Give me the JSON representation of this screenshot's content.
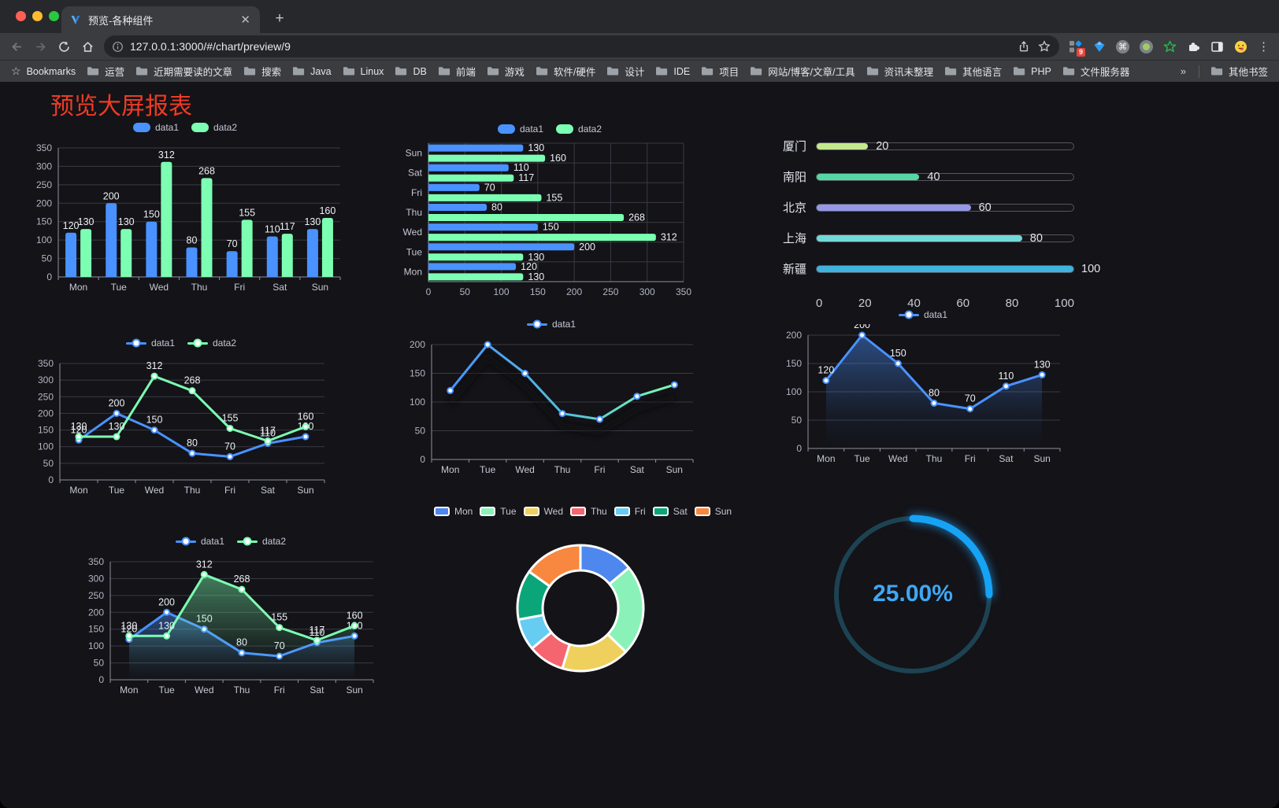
{
  "browser": {
    "tab_title": "预览-各种组件",
    "url_display": "127.0.0.1:3000/#/chart/preview/9",
    "extension_badge": "9",
    "bookmarks_bar": {
      "bookmarks_label": "Bookmarks",
      "folders": [
        "运营",
        "近期需要读的文章",
        "搜索",
        "Java",
        "Linux",
        "DB",
        "前端",
        "游戏",
        "软件/硬件",
        "设计",
        "IDE",
        "项目",
        "网站/博客/文章/工具",
        "资讯未整理",
        "其他语言",
        "PHP",
        "文件服务器"
      ],
      "overflow_chevron": "»",
      "other_bookmarks_label": "其他书签"
    }
  },
  "page": {
    "title": "预览大屏报表",
    "title_color": "#ef3b24",
    "background": "#131318"
  },
  "chart_data": [
    {
      "id": "grouped-bar-vertical",
      "type": "bar",
      "categories": [
        "Mon",
        "Tue",
        "Wed",
        "Thu",
        "Fri",
        "Sat",
        "Sun"
      ],
      "series": [
        {
          "name": "data1",
          "color": "#4992ff",
          "values": [
            120,
            200,
            150,
            80,
            70,
            110,
            130
          ]
        },
        {
          "name": "data2",
          "color": "#7cffb2",
          "values": [
            130,
            130,
            312,
            268,
            155,
            117,
            160
          ]
        }
      ],
      "ylim": [
        0,
        350
      ],
      "ytick": 50,
      "value_labels": true,
      "legend_position": "top"
    },
    {
      "id": "grouped-bar-horizontal",
      "type": "hbar",
      "categories": [
        "Mon",
        "Tue",
        "Wed",
        "Thu",
        "Fri",
        "Sat",
        "Sun"
      ],
      "display_order_top_to_bottom": [
        "Sun",
        "Sat",
        "Fri",
        "Thu",
        "Wed",
        "Tue",
        "Mon"
      ],
      "series": [
        {
          "name": "data1",
          "color": "#4992ff",
          "values": [
            120,
            200,
            150,
            80,
            70,
            110,
            130
          ]
        },
        {
          "name": "data2",
          "color": "#7cffb2",
          "values": [
            130,
            130,
            312,
            268,
            155,
            117,
            160
          ]
        }
      ],
      "xlim": [
        0,
        350
      ],
      "xtick": 50,
      "value_labels": true,
      "legend_position": "top"
    },
    {
      "id": "city-progress",
      "type": "progress",
      "max": 100,
      "axis_ticks": [
        0,
        20,
        40,
        60,
        80,
        100
      ],
      "items": [
        {
          "label": "厦门",
          "value": 20,
          "color": "#c3e88d"
        },
        {
          "label": "南阳",
          "value": 40,
          "color": "#55d6a5"
        },
        {
          "label": "北京",
          "value": 60,
          "color": "#9598e6"
        },
        {
          "label": "上海",
          "value": 80,
          "color": "#73d9d8"
        },
        {
          "label": "新疆",
          "value": 100,
          "color": "#3fb3dd"
        }
      ]
    },
    {
      "id": "line-two-series",
      "type": "line",
      "categories": [
        "Mon",
        "Tue",
        "Wed",
        "Thu",
        "Fri",
        "Sat",
        "Sun"
      ],
      "series": [
        {
          "name": "data1",
          "color": "#4992ff",
          "values": [
            120,
            200,
            150,
            80,
            70,
            110,
            130
          ],
          "labels": true
        },
        {
          "name": "data2",
          "color": "#7cffb2",
          "values": [
            130,
            130,
            312,
            268,
            155,
            117,
            160
          ],
          "labels": true
        }
      ],
      "ylim": [
        0,
        350
      ],
      "ytick": 50
    },
    {
      "id": "line-gradient",
      "type": "line",
      "categories": [
        "Mon",
        "Tue",
        "Wed",
        "Thu",
        "Fri",
        "Sat",
        "Sun"
      ],
      "series": [
        {
          "name": "data1",
          "color": "#4992ff",
          "gradient_to": "#7cffb2",
          "shadow": true,
          "values": [
            120,
            200,
            150,
            80,
            70,
            110,
            130
          ],
          "labels": false
        }
      ],
      "ylim": [
        0,
        200
      ],
      "ytick": 50
    },
    {
      "id": "area-single",
      "type": "line",
      "categories": [
        "Mon",
        "Tue",
        "Wed",
        "Thu",
        "Fri",
        "Sat",
        "Sun"
      ],
      "series": [
        {
          "name": "data1",
          "color": "#4992ff",
          "area": true,
          "values": [
            120,
            200,
            150,
            80,
            70,
            110,
            130
          ],
          "labels": true
        }
      ],
      "ylim": [
        0,
        200
      ],
      "ytick": 50
    },
    {
      "id": "area-two-series",
      "type": "line",
      "categories": [
        "Mon",
        "Tue",
        "Wed",
        "Thu",
        "Fri",
        "Sat",
        "Sun"
      ],
      "series": [
        {
          "name": "data1",
          "color": "#4992ff",
          "area": true,
          "values": [
            120,
            200,
            150,
            80,
            70,
            110,
            130
          ],
          "labels": true
        },
        {
          "name": "data2",
          "color": "#7cffb2",
          "area": true,
          "values": [
            130,
            130,
            312,
            268,
            155,
            117,
            160
          ],
          "labels": true
        }
      ],
      "ylim": [
        0,
        350
      ],
      "ytick": 50
    },
    {
      "id": "weekday-donut",
      "type": "pie",
      "border_color": "#ffffff",
      "inner_radius_ratio": 0.6,
      "items": [
        {
          "label": "Mon",
          "value": 120,
          "color": "#4e87ed"
        },
        {
          "label": "Tue",
          "value": 200,
          "color": "#8af2b8"
        },
        {
          "label": "Wed",
          "value": 150,
          "color": "#f0d05c"
        },
        {
          "label": "Thu",
          "value": 80,
          "color": "#f5656f"
        },
        {
          "label": "Fri",
          "value": 70,
          "color": "#66ccf2"
        },
        {
          "label": "Sat",
          "value": 110,
          "color": "#0ba57a"
        },
        {
          "label": "Sun",
          "value": 130,
          "color": "#f8883f"
        }
      ]
    },
    {
      "id": "percent-gauge",
      "type": "gauge",
      "value_percent": 25,
      "label": "25.00%",
      "progress_color": "#16a3f5",
      "track_color": "#1d4352",
      "label_color": "#3fa7f3"
    }
  ]
}
